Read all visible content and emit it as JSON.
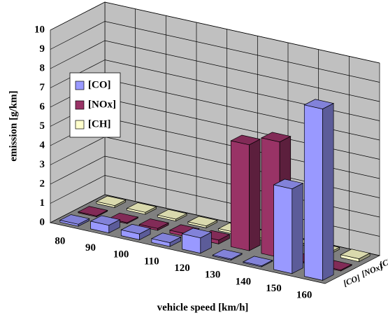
{
  "chart_data": {
    "type": "bar3d",
    "xlabel": "vehicle speed [km/h]",
    "ylabel": "emission [g/km]",
    "categories": [
      "80",
      "90",
      "100",
      "110",
      "120",
      "130",
      "140",
      "150",
      "160"
    ],
    "series": [
      {
        "name": "[CO]",
        "color": "#9999ff",
        "values": [
          0.1,
          0.4,
          0.3,
          0.2,
          0.8,
          0.05,
          0.05,
          4.4,
          8.9
        ]
      },
      {
        "name": "[NOx]",
        "color": "#993366",
        "values": [
          0.05,
          0.05,
          0.1,
          0.15,
          0.2,
          5.5,
          6.0,
          0.05,
          0.05
        ]
      },
      {
        "name": "[CH]",
        "color": "#ffffcc",
        "values": [
          0.1,
          0.1,
          0.1,
          0.1,
          0.1,
          0.1,
          0.1,
          0.1,
          0.15
        ]
      }
    ],
    "ylim": [
      0,
      10
    ],
    "yticks": [
      0,
      1,
      2,
      3,
      4,
      5,
      6,
      7,
      8,
      9,
      10
    ],
    "grid": true
  }
}
